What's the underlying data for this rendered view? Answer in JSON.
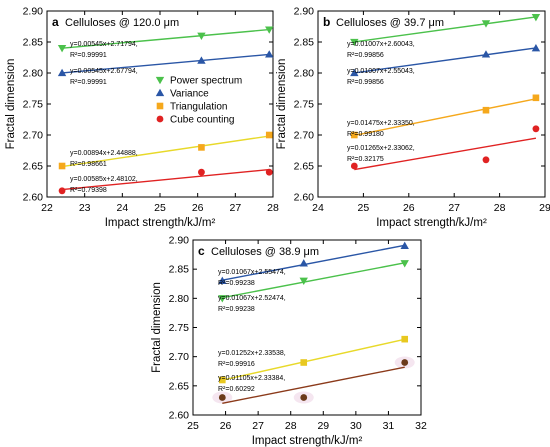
{
  "figure": {
    "colors": {
      "power_spectrum": "#4bc14b",
      "variance": "#2a56a6",
      "triangulation": "#f5a81c",
      "cube_counting": "#e02222",
      "line_a_power": "#4bc14b",
      "line_a_variance": "#2a56a6",
      "line_a_triangulation": "#e8d92a",
      "line_a_cube": "#e02222",
      "line_b_power": "#4bc14b",
      "line_b_variance": "#2a56a6",
      "line_b_triangulation": "#f5a81c",
      "line_b_cube": "#e02222",
      "line_c_power": "#4bc14b",
      "line_c_variance": "#2a56a6",
      "line_c_triangulation": "#e8d92a",
      "line_c_cube": "#8b3a1a",
      "marker_c_cube": "#6b3a1a",
      "marker_c_triangulation": "#e8c820"
    }
  },
  "chart_data": [
    {
      "type": "scatter",
      "panel": "a",
      "title": "Celluloses @ 120.0 μm",
      "xlabel": "Impact strength/kJ/m²",
      "ylabel": "Fractal dimension",
      "xlim": [
        22,
        28
      ],
      "ylim": [
        2.6,
        2.9
      ],
      "xticks": [
        22,
        23,
        24,
        25,
        26,
        27,
        28
      ],
      "yticks": [
        2.6,
        2.65,
        2.7,
        2.75,
        2.8,
        2.85,
        2.9
      ],
      "legend": {
        "position": "right",
        "entries": [
          "Power spectrum",
          "Variance",
          "Triangulation",
          "Cube counting"
        ]
      },
      "series": [
        {
          "name": "Power spectrum",
          "marker": "triangle-down",
          "x": [
            22.4,
            26.1,
            27.9
          ],
          "y": [
            2.84,
            2.86,
            2.87
          ],
          "fit": {
            "slope": 0.00545,
            "intercept": 2.71794,
            "equation": "y=0.00545x+2.71794,",
            "r2": "R²=0.99991"
          }
        },
        {
          "name": "Variance",
          "marker": "triangle-up",
          "x": [
            22.4,
            26.1,
            27.9
          ],
          "y": [
            2.8,
            2.82,
            2.83
          ],
          "fit": {
            "slope": 0.00545,
            "intercept": 2.67794,
            "equation": "y=0.00545x+2.67794,",
            "r2": "R²=0.99991"
          }
        },
        {
          "name": "Triangulation",
          "marker": "square",
          "x": [
            22.4,
            26.1,
            27.9
          ],
          "y": [
            2.65,
            2.68,
            2.7
          ],
          "fit": {
            "slope": 0.00894,
            "intercept": 2.44888,
            "equation": "y=0.00894x+2.44888,",
            "r2": "R²=0.98661"
          }
        },
        {
          "name": "Cube counting",
          "marker": "circle",
          "x": [
            22.4,
            26.1,
            27.9
          ],
          "y": [
            2.61,
            2.64,
            2.64
          ],
          "fit": {
            "slope": 0.00585,
            "intercept": 2.48102,
            "equation": "y=0.00585x+2.48102,",
            "r2": "R²=0.79398"
          }
        }
      ]
    },
    {
      "type": "scatter",
      "panel": "b",
      "title": "Celluloses @ 39.7 μm",
      "xlabel": "Impact strength/kJ/m²",
      "ylabel": "Fractal dimension",
      "xlim": [
        24,
        29
      ],
      "ylim": [
        2.6,
        2.9
      ],
      "xticks": [
        24,
        25,
        26,
        27,
        28,
        29
      ],
      "yticks": [
        2.6,
        2.65,
        2.7,
        2.75,
        2.8,
        2.85,
        2.9
      ],
      "series": [
        {
          "name": "Power spectrum",
          "marker": "triangle-down",
          "x": [
            24.8,
            27.7,
            28.8
          ],
          "y": [
            2.85,
            2.88,
            2.89
          ],
          "fit": {
            "slope": 0.01007,
            "intercept": 2.60043,
            "equation": "y=0.01007x+2.60043,",
            "r2": "R²=0.99856"
          }
        },
        {
          "name": "Variance",
          "marker": "triangle-up",
          "x": [
            24.8,
            27.7,
            28.8
          ],
          "y": [
            2.8,
            2.83,
            2.84
          ],
          "fit": {
            "slope": 0.01007,
            "intercept": 2.55043,
            "equation": "y=0.01007x+2.55043,",
            "r2": "R²=0.99856"
          }
        },
        {
          "name": "Triangulation",
          "marker": "square",
          "x": [
            24.8,
            27.7,
            28.8
          ],
          "y": [
            2.7,
            2.74,
            2.76
          ],
          "fit": {
            "slope": 0.01475,
            "intercept": 2.3335,
            "equation": "y=0.01475x+2.33350,",
            "r2": "R²=0.99180"
          }
        },
        {
          "name": "Cube counting",
          "marker": "circle",
          "x": [
            24.8,
            27.7,
            28.8
          ],
          "y": [
            2.65,
            2.66,
            2.71
          ],
          "fit": {
            "slope": 0.01265,
            "intercept": 2.33062,
            "equation": "y=0.01265x+2.33062,",
            "r2": "R²=0.32175"
          }
        }
      ]
    },
    {
      "type": "scatter",
      "panel": "c",
      "title": "Celluloses @ 38.9 μm",
      "xlabel": "Impact strength/kJ/m²",
      "ylabel": "Fractal dimension",
      "xlim": [
        25,
        32
      ],
      "ylim": [
        2.6,
        2.9
      ],
      "xticks": [
        25,
        26,
        27,
        28,
        29,
        30,
        31,
        32
      ],
      "yticks": [
        2.6,
        2.65,
        2.7,
        2.75,
        2.8,
        2.85,
        2.9
      ],
      "series": [
        {
          "name": "Power spectrum",
          "marker": "triangle-down",
          "x": [
            25.9,
            28.4,
            31.5
          ],
          "y": [
            2.8,
            2.83,
            2.86
          ],
          "fit": {
            "slope": 0.01067,
            "intercept": 2.52474,
            "equation": "y=0.01067x+2.52474,",
            "r2": "R²=0.99238"
          }
        },
        {
          "name": "Variance",
          "marker": "triangle-up",
          "x": [
            25.9,
            28.4,
            31.5
          ],
          "y": [
            2.83,
            2.86,
            2.89
          ],
          "fit": {
            "slope": 0.01067,
            "intercept": 2.55474,
            "equation": "y=0.01067x+2.55474,",
            "r2": "R²=0.99238"
          }
        },
        {
          "name": "Triangulation",
          "marker": "square",
          "x": [
            25.9,
            28.4,
            31.5
          ],
          "y": [
            2.66,
            2.69,
            2.73
          ],
          "fit": {
            "slope": 0.01252,
            "intercept": 2.33538,
            "equation": "y=0.01252x+2.33538,",
            "r2": "R²=0.99916"
          }
        },
        {
          "name": "Cube counting",
          "marker": "circle",
          "x": [
            25.9,
            28.4,
            31.5
          ],
          "y": [
            2.63,
            2.63,
            2.69
          ],
          "fit": {
            "slope": 0.01105,
            "intercept": 2.33384,
            "equation": "y=0.01105x+2.33384,",
            "r2": "R²=0.60292"
          }
        }
      ]
    }
  ]
}
